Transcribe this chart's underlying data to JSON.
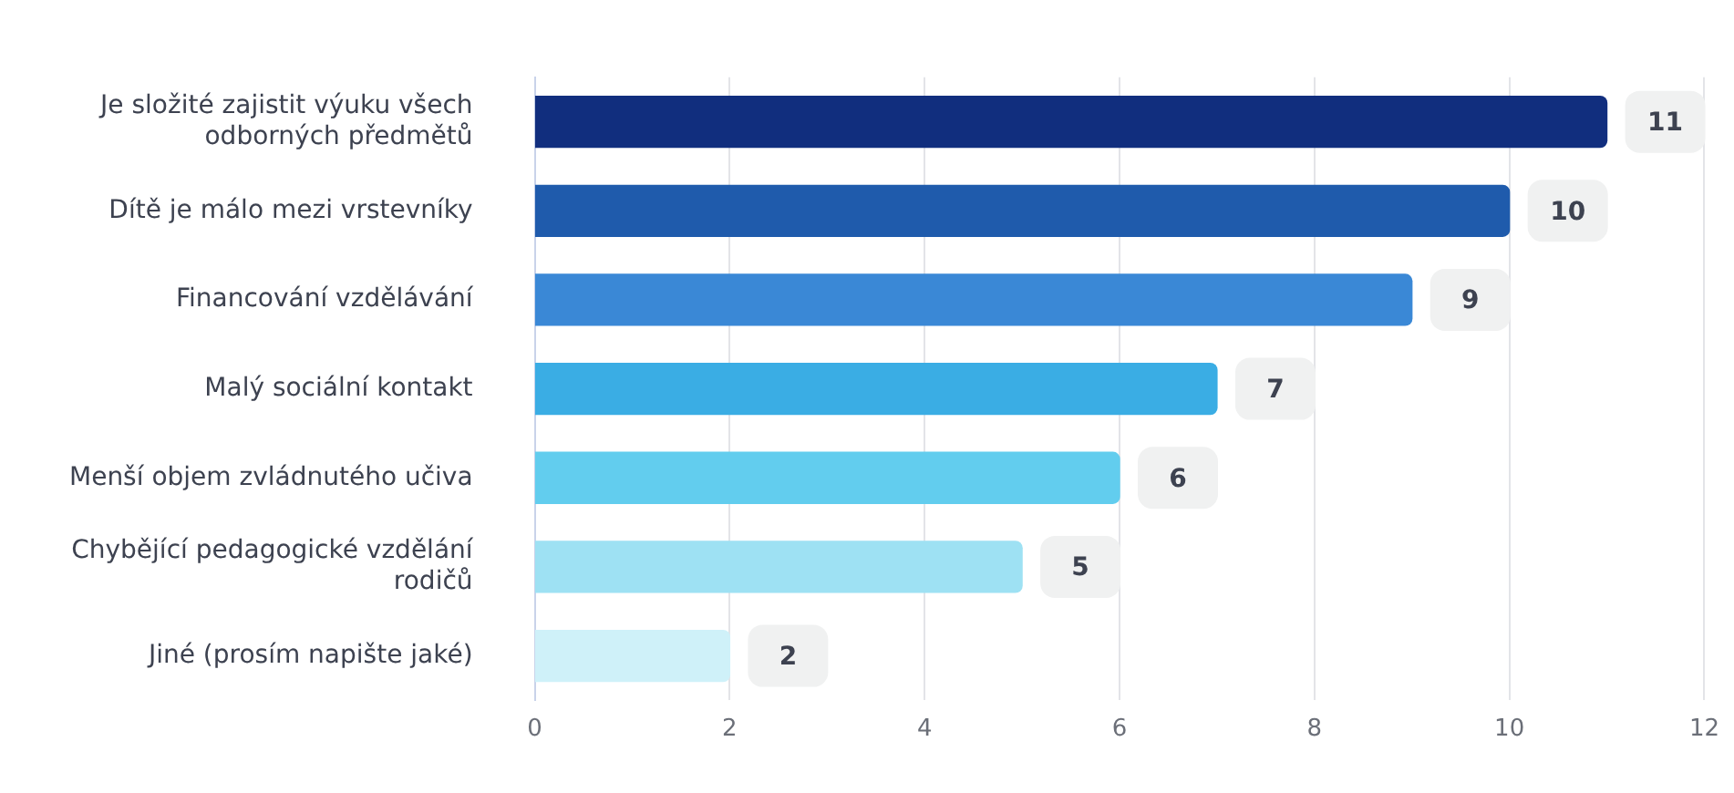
{
  "chart_data": {
    "type": "bar",
    "orientation": "horizontal",
    "categories": [
      "Je složité zajistit výuku všech odborných předmětů",
      "Dítě je málo mezi vrstevníky",
      "Financování vzdělávání",
      "Malý sociální kontakt",
      "Menší objem zvládnutého učiva",
      "Chybějící pedagogické vzdělání rodičů",
      "Jiné (prosím napište jaké)"
    ],
    "values": [
      11,
      10,
      9,
      7,
      6,
      5,
      2
    ],
    "colors": [
      "#112e7e",
      "#1f5bac",
      "#3a88d6",
      "#3aade4",
      "#62cdee",
      "#9ee1f3",
      "#cff1f9"
    ],
    "xlim": [
      0,
      12
    ],
    "xticks": [
      0,
      2,
      4,
      6,
      8,
      10,
      12
    ],
    "grid": "x",
    "legend": false,
    "data_labels": true
  }
}
